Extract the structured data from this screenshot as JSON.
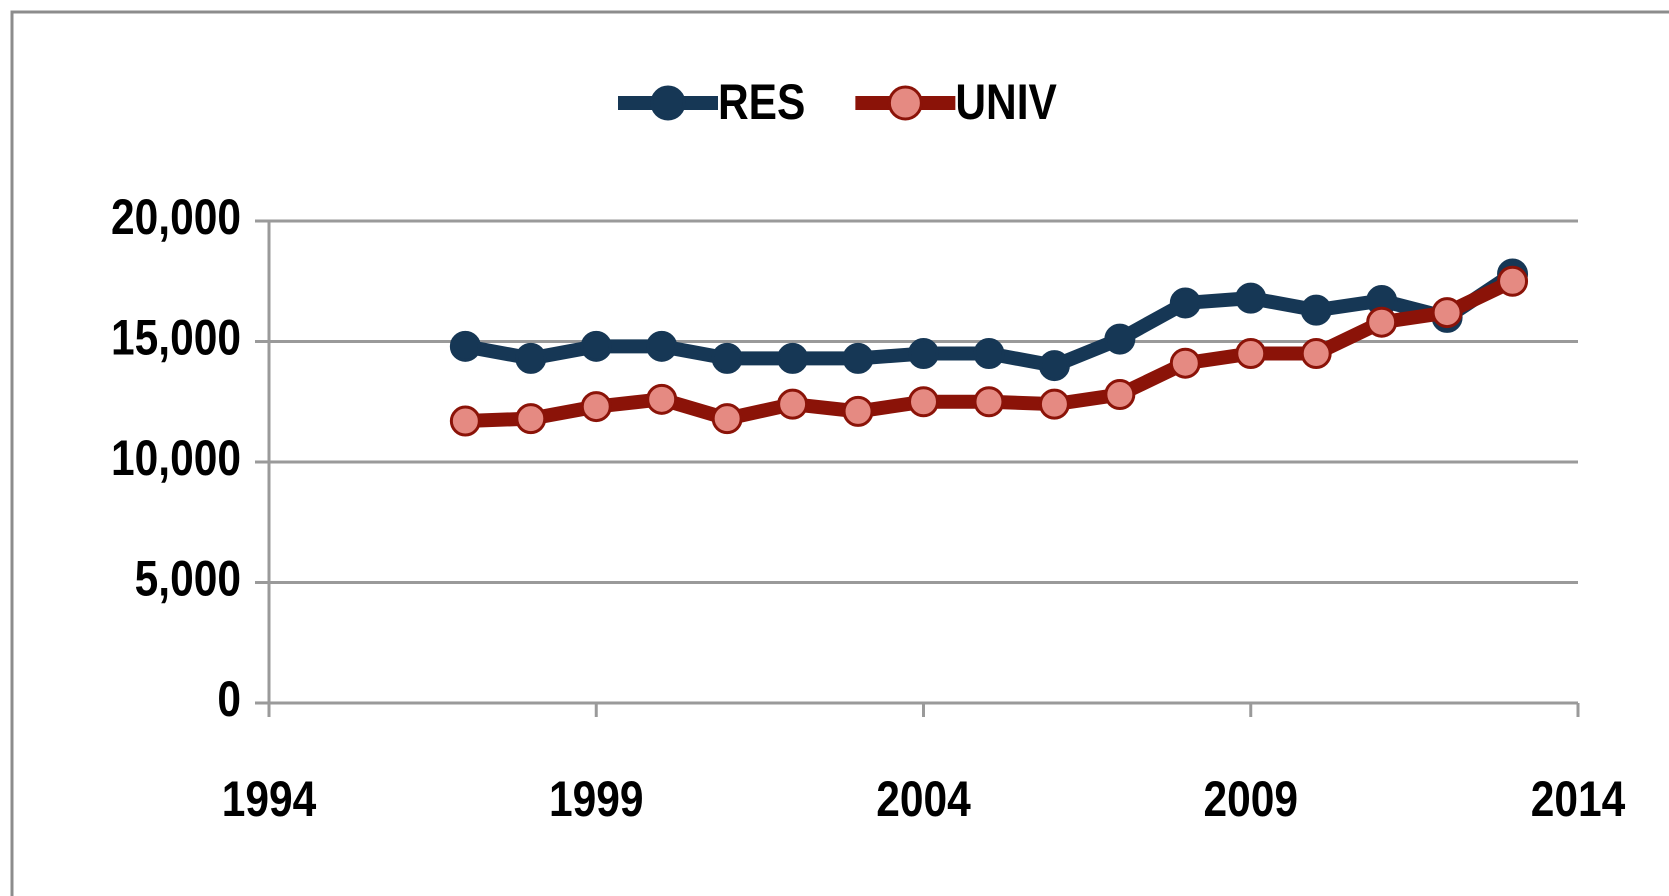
{
  "chart_data": {
    "type": "line",
    "x": [
      1997,
      1998,
      1999,
      2000,
      2001,
      2002,
      2003,
      2004,
      2005,
      2006,
      2007,
      2008,
      2009,
      2010,
      2011,
      2012,
      2013
    ],
    "series": [
      {
        "name": "RES",
        "color": "#163755",
        "marker_color": "#163755",
        "values": [
          14800,
          14300,
          14800,
          14800,
          14300,
          14300,
          14300,
          14500,
          14500,
          14000,
          15100,
          16600,
          16800,
          16300,
          16700,
          16000,
          17800
        ]
      },
      {
        "name": "UNIV",
        "color": "#8b1308",
        "marker_color": "#e58a82",
        "values": [
          11700,
          11800,
          12300,
          12600,
          11800,
          12400,
          12100,
          12500,
          12500,
          12400,
          12800,
          14100,
          14500,
          14500,
          15800,
          16200,
          17500
        ]
      }
    ],
    "xlim": [
      1994,
      2014
    ],
    "xticks": [
      1994,
      1999,
      2004,
      2009,
      2014
    ],
    "ylim": [
      0,
      20000
    ],
    "yticks": [
      0,
      {
        "value": 5000,
        "label": "5,000"
      },
      {
        "value": 10000,
        "label": "10,000"
      },
      {
        "value": 15000,
        "label": "15,000"
      },
      {
        "value": 20000,
        "label": "20,000"
      }
    ],
    "grid": true,
    "legend": "top"
  }
}
